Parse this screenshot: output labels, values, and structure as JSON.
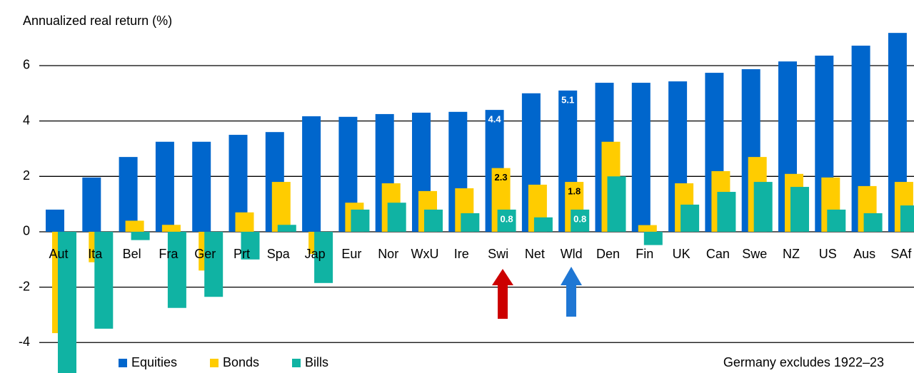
{
  "chart_data": {
    "type": "bar",
    "y_axis_label": "Annualized real return (%)",
    "note": "Germany excludes 1922–23",
    "categories": [
      "Aut",
      "Ita",
      "Bel",
      "Fra",
      "Ger",
      "Prt",
      "Spa",
      "Jap",
      "Eur",
      "Nor",
      "WxU",
      "Ire",
      "Swi",
      "Net",
      "Wld",
      "Den",
      "Fin",
      "UK",
      "Can",
      "Swe",
      "NZ",
      "US",
      "Aus",
      "SAf"
    ],
    "series": [
      {
        "name": "Equities",
        "color": "#0066cc",
        "values": [
          0.8,
          1.96,
          2.7,
          3.25,
          3.25,
          3.5,
          3.6,
          4.17,
          4.15,
          4.25,
          4.3,
          4.33,
          4.4,
          5.0,
          5.1,
          5.38,
          5.38,
          5.43,
          5.74,
          5.87,
          6.15,
          6.36,
          6.72,
          7.18
        ],
        "value_labels": [
          null,
          null,
          null,
          null,
          null,
          null,
          null,
          null,
          null,
          null,
          null,
          null,
          "4.4",
          null,
          "5.1",
          null,
          null,
          null,
          null,
          null,
          null,
          null,
          null,
          null
        ],
        "label_color": "#ffffff"
      },
      {
        "name": "Bonds",
        "color": "#ffcc00",
        "values": [
          -3.66,
          -1.1,
          0.4,
          0.25,
          -1.4,
          0.7,
          1.8,
          -0.8,
          1.05,
          1.75,
          1.47,
          1.57,
          2.3,
          1.7,
          1.8,
          3.25,
          0.24,
          1.75,
          2.19,
          2.7,
          2.09,
          1.96,
          1.65,
          1.8
        ],
        "value_labels": [
          null,
          null,
          null,
          null,
          null,
          null,
          null,
          null,
          null,
          null,
          null,
          null,
          "2.3",
          null,
          "1.8",
          null,
          null,
          null,
          null,
          null,
          null,
          null,
          null,
          null
        ],
        "label_color": "#000000"
      },
      {
        "name": "Bills",
        "color": "#10b3a3",
        "values": [
          -5.1,
          -3.5,
          -0.3,
          -2.75,
          -2.35,
          -1.0,
          0.25,
          -1.85,
          0.8,
          1.05,
          0.8,
          0.67,
          0.8,
          0.52,
          0.8,
          2.0,
          -0.48,
          0.98,
          1.44,
          1.8,
          1.62,
          0.8,
          0.67,
          0.95
        ],
        "value_labels": [
          null,
          null,
          null,
          null,
          null,
          null,
          null,
          null,
          null,
          null,
          null,
          null,
          "0.8",
          null,
          "0.8",
          null,
          null,
          null,
          null,
          null,
          null,
          null,
          null,
          null
        ],
        "label_color": "#ffffff"
      }
    ],
    "ylim": [
      -5.1,
      7.3
    ],
    "yticks": [
      -4,
      -2,
      0,
      2,
      4,
      6
    ],
    "grid": true
  }
}
